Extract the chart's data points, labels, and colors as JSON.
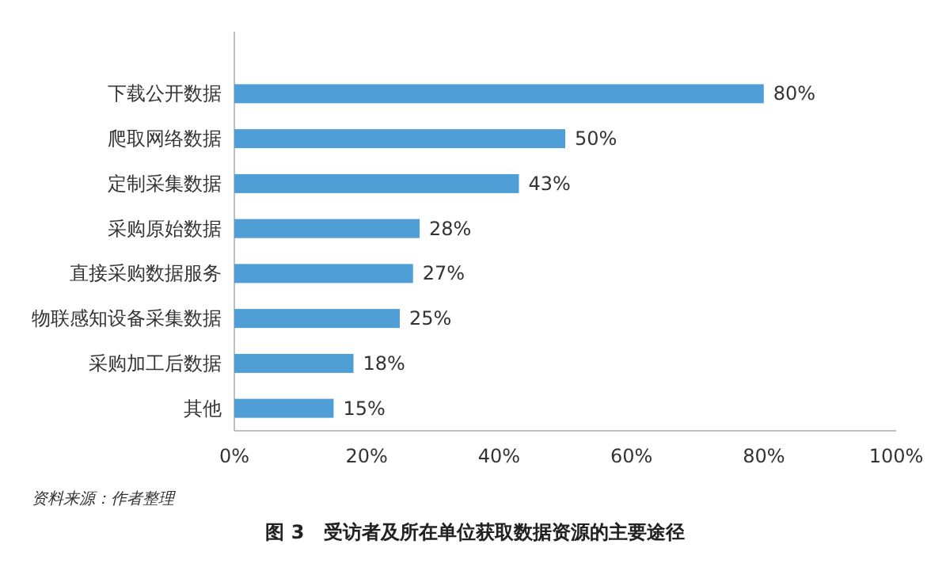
{
  "chart_data": {
    "type": "bar",
    "orientation": "horizontal",
    "title": "图 3　受访者及所在单位获取数据资源的主要途径",
    "categories": [
      "下载公开数据",
      "爬取网络数据",
      "定制采集数据",
      "采购原始数据",
      "直接采购数据服务",
      "物联感知设备采集数据",
      "采购加工后数据",
      "其他"
    ],
    "values": [
      80,
      50,
      43,
      28,
      27,
      25,
      18,
      15
    ],
    "color": "#4f9fd6",
    "data_labels": true,
    "value_labels": [
      "80%",
      "50%",
      "43%",
      "28%",
      "27%",
      "25%",
      "18%",
      "15%"
    ],
    "xlim": [
      0,
      100
    ],
    "xticks": [
      {
        "value": 0,
        "label": "0%"
      },
      {
        "value": 20,
        "label": "20%"
      },
      {
        "value": 40,
        "label": "40%"
      },
      {
        "value": 60,
        "label": "60%"
      },
      {
        "value": 80,
        "label": "80%"
      },
      {
        "value": 100,
        "label": "100%"
      }
    ],
    "annotations": [
      "资料来源：作者整理"
    ]
  }
}
